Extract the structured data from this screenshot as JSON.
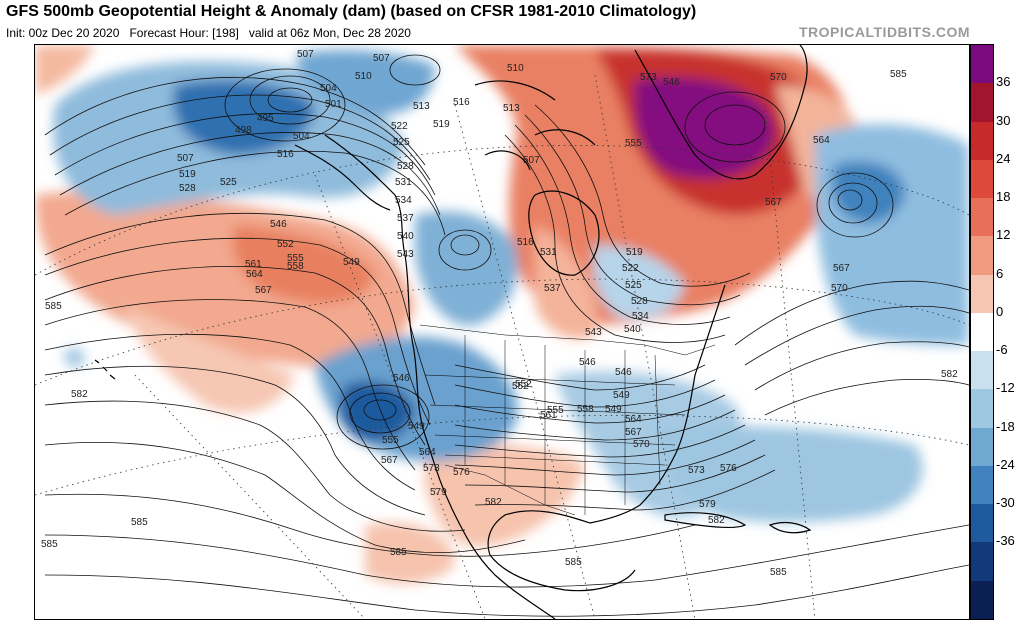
{
  "header": {
    "title": "GFS 500mb Geopotential Height & Anomaly (dam) (based on CFSR 1981-2010 Climatology)",
    "init": "Init: 00z Dec 20 2020",
    "forecast_hour": "Forecast Hour: [198]",
    "valid": "valid at 06z Mon, Dec 28 2020",
    "credit": "TROPICALTIDBITS.COM"
  },
  "colorbar": {
    "ticks": [
      "36",
      "30",
      "24",
      "18",
      "12",
      "6",
      "0",
      "-6",
      "-12",
      "-18",
      "-24",
      "-30",
      "-36"
    ],
    "colors": [
      "#7a0a7e",
      "#a3152c",
      "#c62a2a",
      "#dd4a3a",
      "#e8705a",
      "#f09a80",
      "#f6c6b2",
      "#ffffff",
      "#c9e0ee",
      "#9ec7e0",
      "#6fa8d0",
      "#3f82bd",
      "#1f5a9e",
      "#12397a",
      "#0b1f55"
    ]
  },
  "map": {
    "contour_labels": [
      {
        "t": "507"
      },
      {
        "t": "507"
      },
      {
        "t": "510"
      },
      {
        "t": "504"
      },
      {
        "t": "501"
      },
      {
        "t": "498"
      },
      {
        "t": "495"
      },
      {
        "t": "504"
      },
      {
        "t": "507"
      },
      {
        "t": "519"
      },
      {
        "t": "528"
      },
      {
        "t": "525"
      },
      {
        "t": "516"
      },
      {
        "t": "513"
      },
      {
        "t": "516"
      },
      {
        "t": "519"
      },
      {
        "t": "522"
      },
      {
        "t": "525"
      },
      {
        "t": "528"
      },
      {
        "t": "531"
      },
      {
        "t": "534"
      },
      {
        "t": "537"
      },
      {
        "t": "540"
      },
      {
        "t": "543"
      },
      {
        "t": "546"
      },
      {
        "t": "552"
      },
      {
        "t": "555"
      },
      {
        "t": "558"
      },
      {
        "t": "561"
      },
      {
        "t": "564"
      },
      {
        "t": "567"
      },
      {
        "t": "549"
      },
      {
        "t": "585"
      },
      {
        "t": "582"
      },
      {
        "t": "510"
      },
      {
        "t": "507"
      },
      {
        "t": "513"
      },
      {
        "t": "531"
      },
      {
        "t": "537"
      },
      {
        "t": "543"
      },
      {
        "t": "516"
      },
      {
        "t": "519"
      },
      {
        "t": "522"
      },
      {
        "t": "525"
      },
      {
        "t": "528"
      },
      {
        "t": "534"
      },
      {
        "t": "540"
      },
      {
        "t": "546"
      },
      {
        "t": "546"
      },
      {
        "t": "549"
      },
      {
        "t": "552"
      },
      {
        "t": "555"
      },
      {
        "t": "558"
      },
      {
        "t": "561"
      },
      {
        "t": "564"
      },
      {
        "t": "567"
      },
      {
        "t": "570"
      },
      {
        "t": "549"
      },
      {
        "t": "555"
      },
      {
        "t": "564"
      },
      {
        "t": "567"
      },
      {
        "t": "573"
      },
      {
        "t": "576"
      },
      {
        "t": "579"
      },
      {
        "t": "582"
      },
      {
        "t": "585"
      },
      {
        "t": "585"
      },
      {
        "t": "585"
      },
      {
        "t": "585"
      },
      {
        "t": "573"
      },
      {
        "t": "576"
      },
      {
        "t": "579"
      },
      {
        "t": "582"
      },
      {
        "t": "546"
      },
      {
        "t": "549"
      },
      {
        "t": "552"
      },
      {
        "t": "567"
      },
      {
        "t": "570"
      },
      {
        "t": "573"
      },
      {
        "t": "564"
      },
      {
        "t": "567"
      },
      {
        "t": "570"
      },
      {
        "t": "582"
      },
      {
        "t": "585"
      },
      {
        "t": "585"
      },
      {
        "t": "555"
      },
      {
        "t": "546"
      }
    ]
  }
}
